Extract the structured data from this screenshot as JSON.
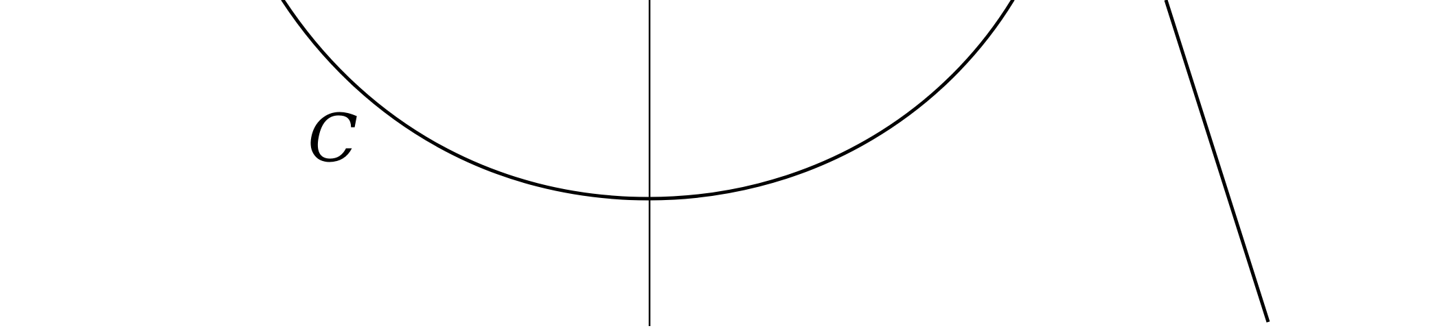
{
  "diagram": {
    "curve_label": "C",
    "line_color": "#000000",
    "background": "#ffffff"
  }
}
